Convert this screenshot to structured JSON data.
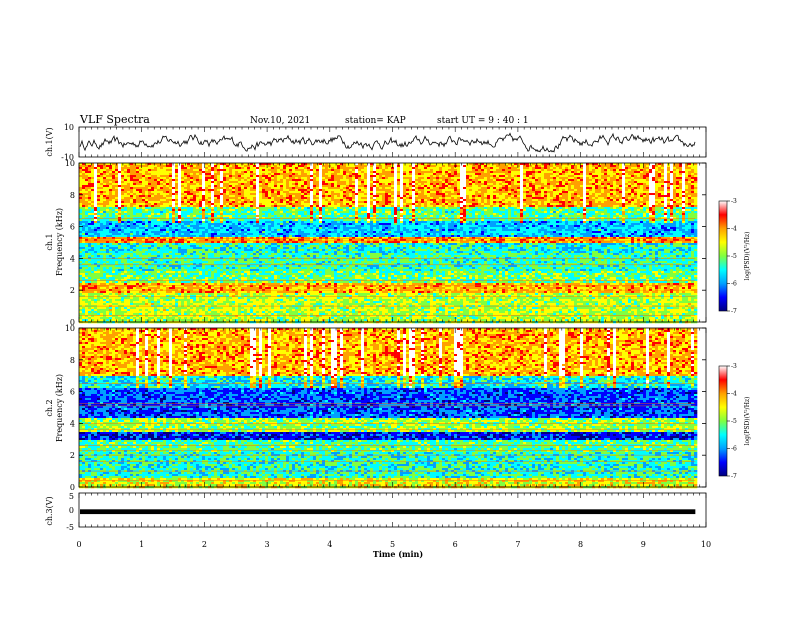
{
  "header": {
    "title": "VLF Spectra",
    "date": "Nov.10, 2021",
    "station": "station= KAP",
    "start": "start  UT =  9 : 40 : 1"
  },
  "chart_data": {
    "type": "heatmap",
    "x_axis": {
      "label": "Time  (min)",
      "range": [
        0,
        10
      ],
      "ticks": [
        "0",
        "1",
        "2",
        "3",
        "4",
        "5",
        "6",
        "7",
        "8",
        "9",
        "10"
      ]
    },
    "colorscale": [
      "#000080",
      "#0000ff",
      "#00a0ff",
      "#00ffff",
      "#80ff40",
      "#ffff00",
      "#ffa000",
      "#ff0000",
      "#ffffff"
    ],
    "panels": [
      {
        "name": "ch.1 waveform",
        "type": "line",
        "ylabel": "ch.1(V)",
        "y_ticks": [
          "10",
          "-10"
        ],
        "ylim": [
          -10,
          10
        ],
        "x_extent": [
          0,
          9.83
        ]
      },
      {
        "name": "ch.1 spectrogram",
        "type": "heatmap",
        "ylabel_line1": "ch.1",
        "ylabel_line2": "Frequency  (kHz)",
        "y_ticks": [
          "0",
          "2",
          "4",
          "6",
          "8",
          "10"
        ],
        "ylim": [
          0,
          10
        ],
        "x_extent": [
          0,
          9.83
        ],
        "colorbar": {
          "label": "log(PSD)(V²/Hz)",
          "ticks": [
            "-3",
            "-4",
            "-5",
            "-6",
            "-7"
          ],
          "range": [
            -7,
            -3
          ]
        },
        "bands_khz": [
          {
            "f": [
              0.0,
              0.5
            ],
            "lvl": 0.55
          },
          {
            "f": [
              0.5,
              1.8
            ],
            "lvl": 0.55
          },
          {
            "f": [
              1.8,
              2.4
            ],
            "lvl": 0.72
          },
          {
            "f": [
              2.4,
              3.2
            ],
            "lvl": 0.48
          },
          {
            "f": [
              3.2,
              4.4
            ],
            "lvl": 0.42
          },
          {
            "f": [
              4.4,
              5.0
            ],
            "lvl": 0.38
          },
          {
            "f": [
              5.0,
              5.3
            ],
            "lvl": 0.75
          },
          {
            "f": [
              5.3,
              6.3
            ],
            "lvl": 0.3
          },
          {
            "f": [
              6.3,
              7.2
            ],
            "lvl": 0.45
          },
          {
            "f": [
              7.2,
              10.0
            ],
            "lvl": 0.72
          }
        ]
      },
      {
        "name": "ch.2 spectrogram",
        "type": "heatmap",
        "ylabel_line1": "ch.2",
        "ylabel_line2": "Frequency  (kHz)",
        "y_ticks": [
          "0",
          "2",
          "4",
          "6",
          "8",
          "10"
        ],
        "ylim": [
          0,
          10
        ],
        "x_extent": [
          0,
          9.83
        ],
        "colorbar": {
          "label": "log(PSD)(V²/Hz)",
          "ticks": [
            "-3",
            "-4",
            "-5",
            "-6",
            "-7"
          ],
          "range": [
            -7,
            -3
          ]
        },
        "bands_khz": [
          {
            "f": [
              0.0,
              0.6
            ],
            "lvl": 0.62
          },
          {
            "f": [
              0.6,
              2.2
            ],
            "lvl": 0.4
          },
          {
            "f": [
              2.2,
              2.9
            ],
            "lvl": 0.45
          },
          {
            "f": [
              2.9,
              3.5
            ],
            "lvl": 0.12
          },
          {
            "f": [
              3.5,
              4.3
            ],
            "lvl": 0.52
          },
          {
            "f": [
              4.3,
              6.2
            ],
            "lvl": 0.18
          },
          {
            "f": [
              6.2,
              7.0
            ],
            "lvl": 0.35
          },
          {
            "f": [
              7.0,
              10.0
            ],
            "lvl": 0.72
          }
        ]
      },
      {
        "name": "ch.3 waveform",
        "type": "line",
        "ylabel": "ch.3(V)",
        "y_ticks": [
          "5",
          "0",
          "-5"
        ],
        "ylim": [
          -5,
          5
        ],
        "x_extent": [
          0,
          9.83
        ],
        "band_level": [
          -1.2,
          0.2
        ]
      }
    ]
  }
}
